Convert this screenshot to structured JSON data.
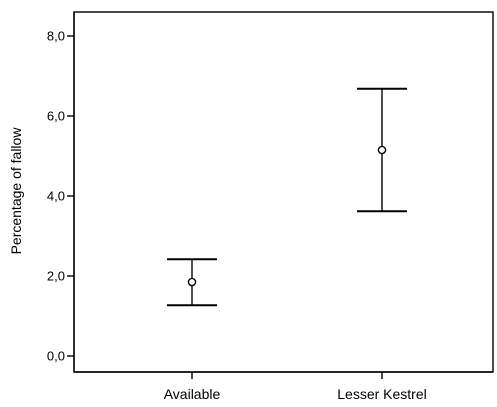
{
  "chart_data": {
    "type": "errorbar",
    "ylabel": "Percentage of fallow",
    "xlabel": "",
    "categories": [
      "Available",
      "Lesser Kestrel"
    ],
    "series": [
      {
        "means": [
          1.85,
          5.15
        ],
        "lower": [
          1.27,
          3.62
        ],
        "upper": [
          2.42,
          6.68
        ]
      }
    ],
    "ylim": [
      -0.4,
      8.6
    ],
    "yticks": [
      0.0,
      2.0,
      4.0,
      6.0,
      8.0
    ],
    "ytick_labels": [
      "0,0",
      "2,0",
      "4,0",
      "6,0",
      "8,0"
    ],
    "grid": false,
    "legend": "none"
  }
}
